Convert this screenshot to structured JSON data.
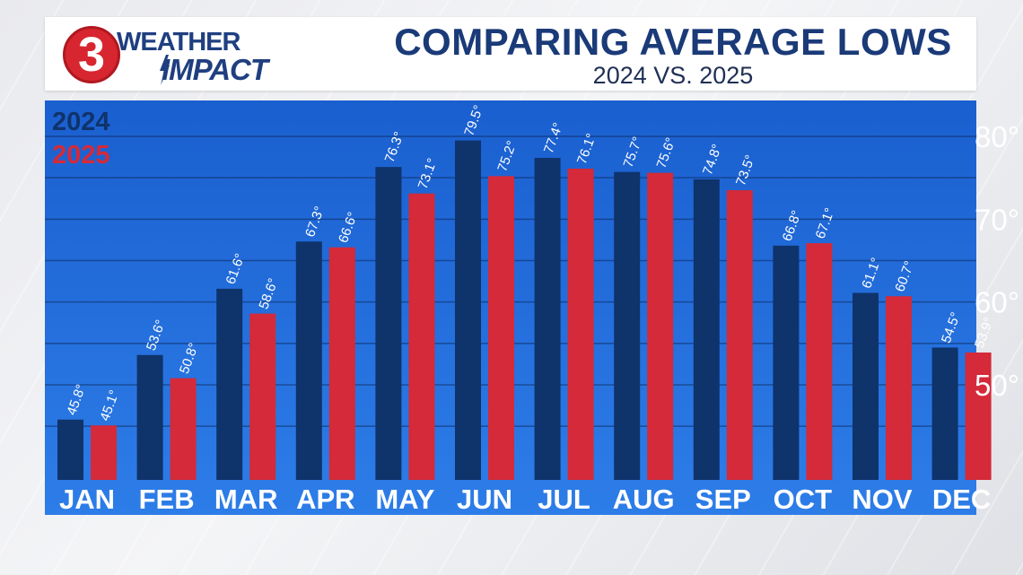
{
  "header": {
    "logo_number": "3",
    "logo_line1": "WEATHER",
    "logo_line2": "IMPACT",
    "title": "COMPARING AVERAGE LOWS",
    "subtitle": "2024 VS. 2025"
  },
  "colors": {
    "panel_top": "#1a5fcf",
    "panel_bottom": "#2d7de8",
    "series_2024": "#0f336b",
    "series_2025": "#d42a39",
    "axis_text": "#ffffff"
  },
  "chart_data": {
    "type": "bar",
    "categories": [
      "JAN",
      "FEB",
      "MAR",
      "APR",
      "MAY",
      "JUN",
      "JUL",
      "AUG",
      "SEP",
      "OCT",
      "NOV",
      "DEC"
    ],
    "series": [
      {
        "name": "2024",
        "values": [
          45.8,
          53.6,
          61.6,
          67.3,
          76.3,
          79.5,
          77.4,
          75.7,
          74.8,
          66.8,
          61.1,
          54.5
        ]
      },
      {
        "name": "2025",
        "values": [
          45.1,
          50.8,
          58.6,
          66.6,
          73.1,
          75.2,
          76.1,
          75.6,
          73.5,
          67.1,
          60.7,
          53.9
        ]
      }
    ],
    "data_labels": [
      [
        "45.8°",
        "53.6°",
        "61.6°",
        "67.3°",
        "76.3°",
        "79.5°",
        "77.4°",
        "75.7°",
        "74.8°",
        "66.8°",
        "61.1°",
        "54.5°"
      ],
      [
        "45.1°",
        "50.8°",
        "58.6°",
        "66.6°",
        "73.1°",
        "75.2°",
        "76.1°",
        "75.6°",
        "73.5°",
        "67.1°",
        "60.7°",
        "53.9°"
      ]
    ],
    "y_ticks": [
      50,
      60,
      70,
      80
    ],
    "y_tick_labels": [
      "50°",
      "60°",
      "70°",
      "80°"
    ],
    "ylim": [
      38,
      83
    ],
    "grid": true,
    "legend_position": "top-left"
  }
}
